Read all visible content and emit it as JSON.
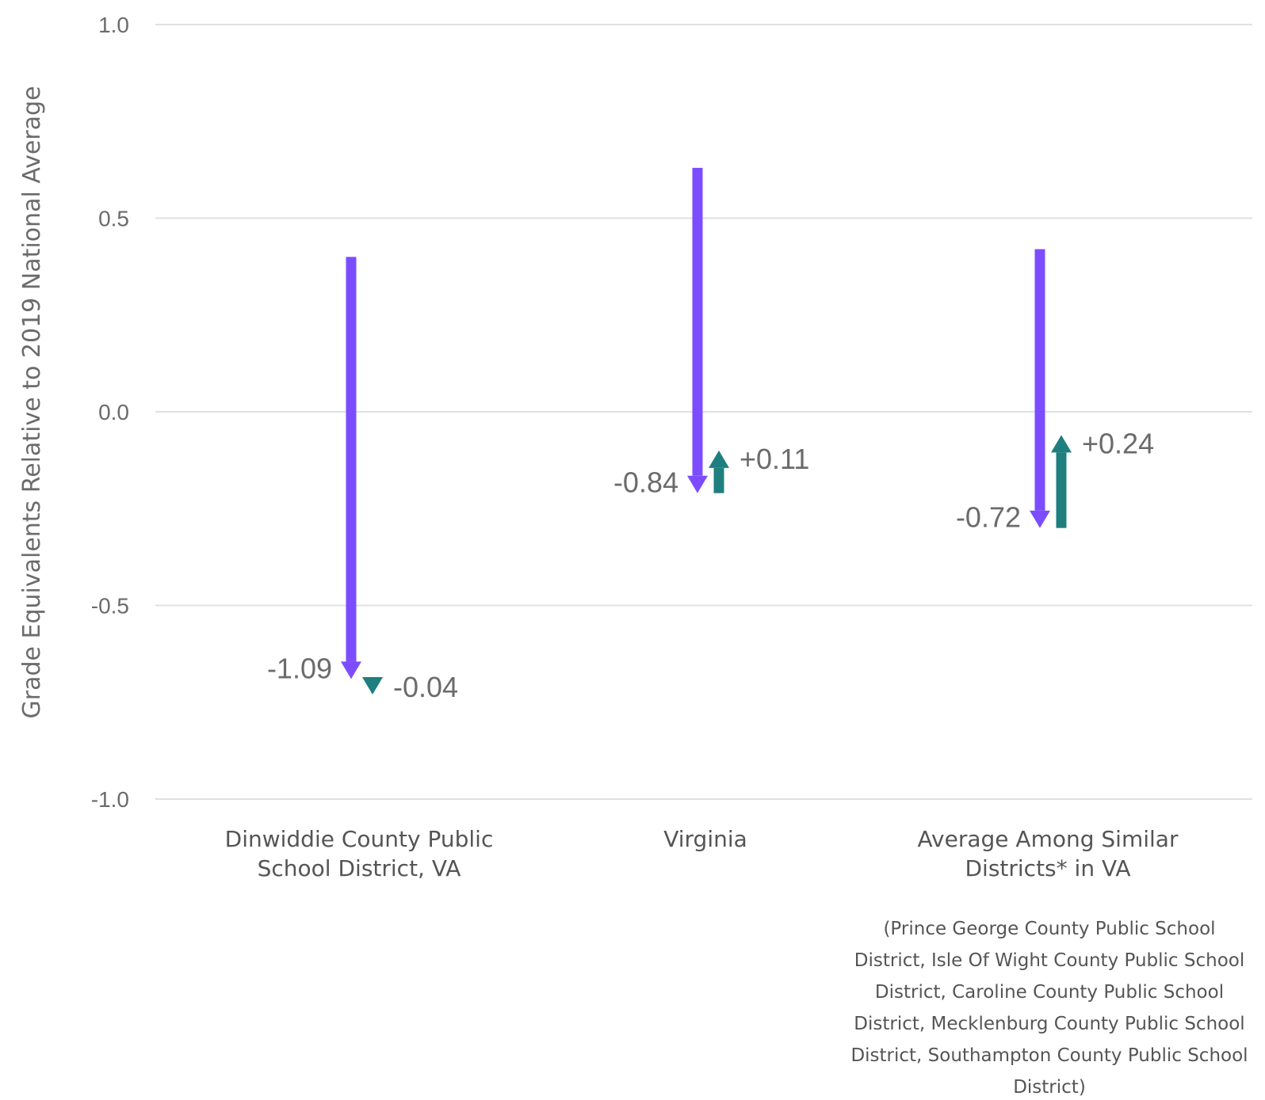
{
  "chart_data": {
    "type": "arrow",
    "ylabel": "Grade Equivalents Relative to 2019 National Average",
    "xlabel": "",
    "ylim": [
      -1.0,
      1.0
    ],
    "yticks": [
      {
        "value": 1.0,
        "label": "1.0"
      },
      {
        "value": 0.5,
        "label": "0.5"
      },
      {
        "value": 0.0,
        "label": "0.0"
      },
      {
        "value": -0.5,
        "label": "-0.5"
      },
      {
        "value": -1.0,
        "label": "-1.0"
      }
    ],
    "grid": true,
    "colors": {
      "decline": "#7b4dff",
      "change": "#1f7f7f",
      "grid": "#e0e0e0",
      "text": "#6b6b6b"
    },
    "categories": [
      {
        "label_lines": [
          "Dinwiddie County Public",
          "School District, VA"
        ],
        "decline": {
          "start": 0.4,
          "end": -0.69,
          "label": "-1.09"
        },
        "change": {
          "start": -0.69,
          "end": -0.73,
          "label": "-0.04"
        }
      },
      {
        "label_lines": [
          "Virginia"
        ],
        "decline": {
          "start": 0.63,
          "end": -0.21,
          "label": "-0.84"
        },
        "change": {
          "start": -0.21,
          "end": -0.1,
          "label": "+0.11"
        }
      },
      {
        "label_lines": [
          "Average Among Similar",
          "Districts* in VA"
        ],
        "decline": {
          "start": 0.42,
          "end": -0.3,
          "label": "-0.72"
        },
        "change": {
          "start": -0.3,
          "end": -0.06,
          "label": "+0.24"
        }
      }
    ],
    "footnote_lines": [
      "(Prince George County Public School",
      "District, Isle Of Wight County Public School",
      "District, Caroline County Public School",
      "District, Mecklenburg County Public School",
      "District, Southampton County Public School",
      "District)"
    ]
  }
}
